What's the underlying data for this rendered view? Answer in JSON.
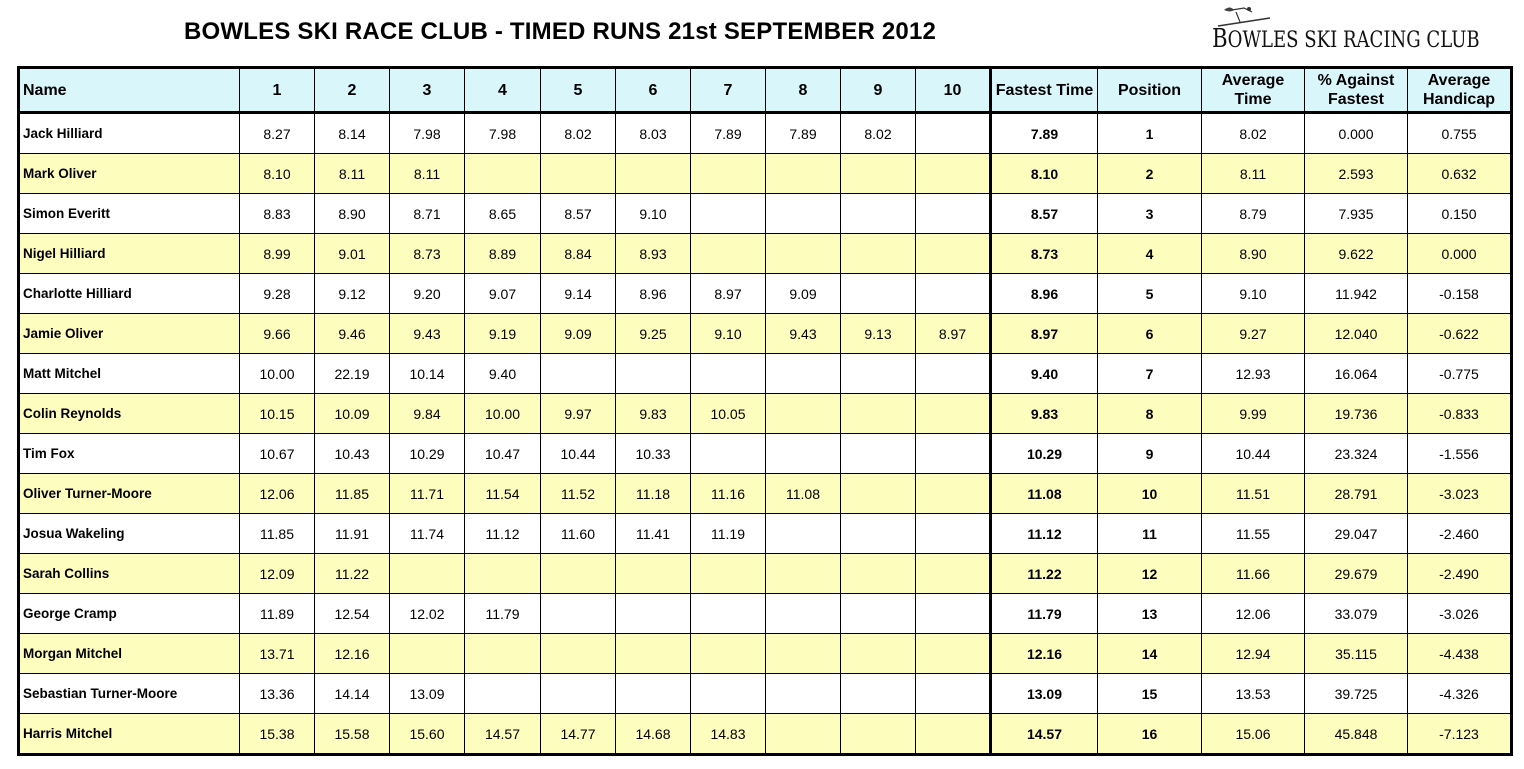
{
  "title": "BOWLES SKI RACE CLUB - TIMED RUNS 21st SEPTEMBER 2012",
  "logo": {
    "text_big": "B",
    "text_rest": "OWLES SKI ",
    "text_racing": "RACING CLUB"
  },
  "colors": {
    "header_bg": "#d9f7fb",
    "alt_row_bg": "#fdfdbe"
  },
  "headers": [
    "Name",
    "1",
    "2",
    "3",
    "4",
    "5",
    "6",
    "7",
    "8",
    "9",
    "10",
    "Fastest Time",
    "Position",
    "Average Time",
    "% Against Fastest",
    "Average Handicap"
  ],
  "rows": [
    {
      "name": "Jack Hilliard",
      "runs": [
        "8.27",
        "8.14",
        "7.98",
        "7.98",
        "8.02",
        "8.03",
        "7.89",
        "7.89",
        "8.02",
        ""
      ],
      "fastest": "7.89",
      "position": "1",
      "average": "8.02",
      "pct": "0.000",
      "handicap": "0.755"
    },
    {
      "name": "Mark Oliver",
      "runs": [
        "8.10",
        "8.11",
        "8.11",
        "",
        "",
        "",
        "",
        "",
        "",
        ""
      ],
      "fastest": "8.10",
      "position": "2",
      "average": "8.11",
      "pct": "2.593",
      "handicap": "0.632"
    },
    {
      "name": "Simon Everitt",
      "runs": [
        "8.83",
        "8.90",
        "8.71",
        "8.65",
        "8.57",
        "9.10",
        "",
        "",
        "",
        ""
      ],
      "fastest": "8.57",
      "position": "3",
      "average": "8.79",
      "pct": "7.935",
      "handicap": "0.150"
    },
    {
      "name": "Nigel Hilliard",
      "runs": [
        "8.99",
        "9.01",
        "8.73",
        "8.89",
        "8.84",
        "8.93",
        "",
        "",
        "",
        ""
      ],
      "fastest": "8.73",
      "position": "4",
      "average": "8.90",
      "pct": "9.622",
      "handicap": "0.000"
    },
    {
      "name": "Charlotte Hilliard",
      "runs": [
        "9.28",
        "9.12",
        "9.20",
        "9.07",
        "9.14",
        "8.96",
        "8.97",
        "9.09",
        "",
        ""
      ],
      "fastest": "8.96",
      "position": "5",
      "average": "9.10",
      "pct": "11.942",
      "handicap": "-0.158"
    },
    {
      "name": "Jamie Oliver",
      "runs": [
        "9.66",
        "9.46",
        "9.43",
        "9.19",
        "9.09",
        "9.25",
        "9.10",
        "9.43",
        "9.13",
        "8.97"
      ],
      "fastest": "8.97",
      "position": "6",
      "average": "9.27",
      "pct": "12.040",
      "handicap": "-0.622"
    },
    {
      "name": "Matt Mitchel",
      "runs": [
        "10.00",
        "22.19",
        "10.14",
        "9.40",
        "",
        "",
        "",
        "",
        "",
        ""
      ],
      "fastest": "9.40",
      "position": "7",
      "average": "12.93",
      "pct": "16.064",
      "handicap": "-0.775"
    },
    {
      "name": "Colin Reynolds",
      "runs": [
        "10.15",
        "10.09",
        "9.84",
        "10.00",
        "9.97",
        "9.83",
        "10.05",
        "",
        "",
        ""
      ],
      "fastest": "9.83",
      "position": "8",
      "average": "9.99",
      "pct": "19.736",
      "handicap": "-0.833"
    },
    {
      "name": "Tim Fox",
      "runs": [
        "10.67",
        "10.43",
        "10.29",
        "10.47",
        "10.44",
        "10.33",
        "",
        "",
        "",
        ""
      ],
      "fastest": "10.29",
      "position": "9",
      "average": "10.44",
      "pct": "23.324",
      "handicap": "-1.556"
    },
    {
      "name": "Oliver Turner-Moore",
      "runs": [
        "12.06",
        "11.85",
        "11.71",
        "11.54",
        "11.52",
        "11.18",
        "11.16",
        "11.08",
        "",
        ""
      ],
      "fastest": "11.08",
      "position": "10",
      "average": "11.51",
      "pct": "28.791",
      "handicap": "-3.023"
    },
    {
      "name": "Josua Wakeling",
      "runs": [
        "11.85",
        "11.91",
        "11.74",
        "11.12",
        "11.60",
        "11.41",
        "11.19",
        "",
        "",
        ""
      ],
      "fastest": "11.12",
      "position": "11",
      "average": "11.55",
      "pct": "29.047",
      "handicap": "-2.460"
    },
    {
      "name": "Sarah Collins",
      "runs": [
        "12.09",
        "11.22",
        "",
        "",
        "",
        "",
        "",
        "",
        "",
        ""
      ],
      "fastest": "11.22",
      "position": "12",
      "average": "11.66",
      "pct": "29.679",
      "handicap": "-2.490"
    },
    {
      "name": "George Cramp",
      "runs": [
        "11.89",
        "12.54",
        "12.02",
        "11.79",
        "",
        "",
        "",
        "",
        "",
        ""
      ],
      "fastest": "11.79",
      "position": "13",
      "average": "12.06",
      "pct": "33.079",
      "handicap": "-3.026"
    },
    {
      "name": "Morgan Mitchel",
      "runs": [
        "13.71",
        "12.16",
        "",
        "",
        "",
        "",
        "",
        "",
        "",
        ""
      ],
      "fastest": "12.16",
      "position": "14",
      "average": "12.94",
      "pct": "35.115",
      "handicap": "-4.438"
    },
    {
      "name": "Sebastian Turner-Moore",
      "runs": [
        "13.36",
        "14.14",
        "13.09",
        "",
        "",
        "",
        "",
        "",
        "",
        ""
      ],
      "fastest": "13.09",
      "position": "15",
      "average": "13.53",
      "pct": "39.725",
      "handicap": "-4.326"
    },
    {
      "name": "Harris Mitchel",
      "runs": [
        "15.38",
        "15.58",
        "15.60",
        "14.57",
        "14.77",
        "14.68",
        "14.83",
        "",
        "",
        ""
      ],
      "fastest": "14.57",
      "position": "16",
      "average": "15.06",
      "pct": "45.848",
      "handicap": "-7.123"
    }
  ]
}
